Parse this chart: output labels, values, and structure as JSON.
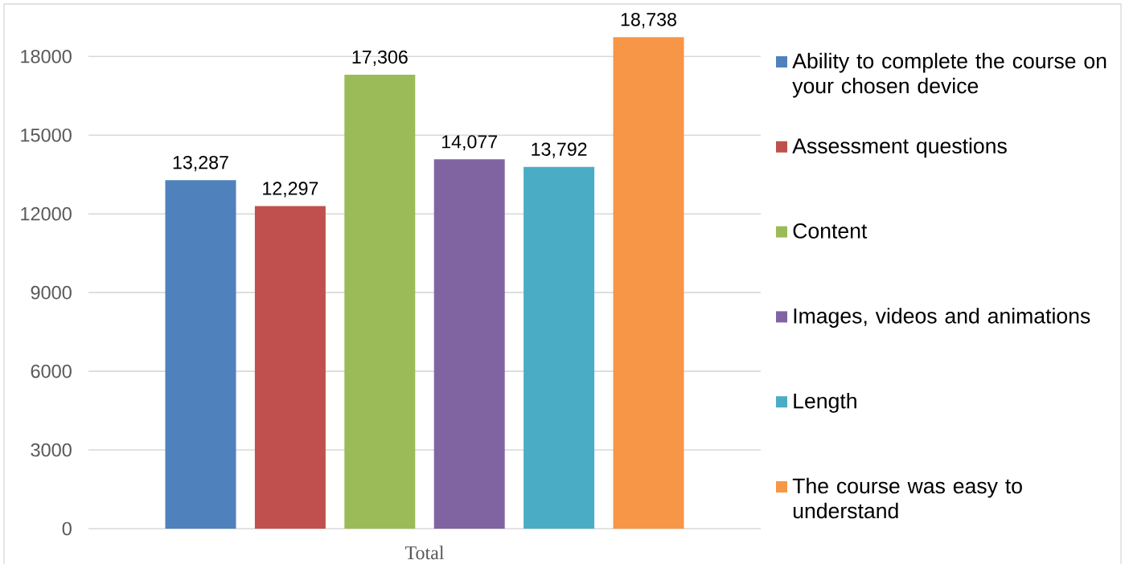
{
  "chart_data": {
    "type": "bar",
    "categories": [
      "Total"
    ],
    "series": [
      {
        "name": "Ability to complete the course on your chosen device",
        "color": "#4f81bd",
        "values": [
          13287
        ],
        "value_labels": [
          "13,287"
        ]
      },
      {
        "name": "Assessment questions",
        "color": "#c0504d",
        "values": [
          12297
        ],
        "value_labels": [
          "12,297"
        ]
      },
      {
        "name": "Content",
        "color": "#9bbb59",
        "values": [
          17306
        ],
        "value_labels": [
          "17,306"
        ]
      },
      {
        "name": "Images, videos and animations",
        "color": "#8064a2",
        "values": [
          14077
        ],
        "value_labels": [
          "14,077"
        ]
      },
      {
        "name": "Length",
        "color": "#4bacc6",
        "values": [
          13792
        ],
        "value_labels": [
          "13,792"
        ]
      },
      {
        "name": "The course was easy to understand",
        "color": "#f79646",
        "values": [
          18738
        ],
        "value_labels": [
          "18,738"
        ]
      }
    ],
    "ylim": [
      0,
      20000
    ],
    "yticks": [
      0,
      3000,
      6000,
      9000,
      12000,
      15000,
      18000
    ],
    "grid": "y",
    "legend": "right"
  }
}
